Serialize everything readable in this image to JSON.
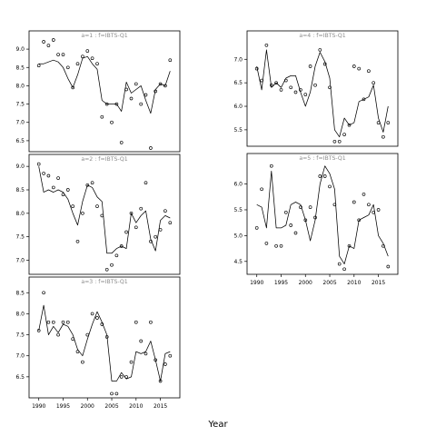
{
  "figure": {
    "xlabel": "Year"
  },
  "chart_data": [
    {
      "type": "line",
      "panel_label": "a=1 : f=IBTS-Q1",
      "x_range": [
        1988,
        2019
      ],
      "ylim": [
        6.2,
        9.3
      ],
      "xticks": [
        1990,
        1995,
        2000,
        2005,
        2010,
        2015
      ],
      "xtick_labels": [
        "1990",
        "1995",
        "2000",
        "2005",
        "2010",
        "2015"
      ],
      "yticks": [
        6.5,
        7.0,
        7.5,
        8.0,
        8.5,
        9.0
      ],
      "ytick_labels": [
        "6.5",
        "7.0",
        "7.5",
        "8.0",
        "8.5",
        "9.0"
      ],
      "series": [
        {
          "kind": "line",
          "x": [
            1990,
            1991,
            1992,
            1993,
            1994,
            1995,
            1996,
            1997,
            1998,
            1999,
            2000,
            2001,
            2002,
            2003,
            2004,
            2005,
            2006,
            2007,
            2008,
            2009,
            2010,
            2011,
            2012,
            2013,
            2014,
            2015,
            2016,
            2017
          ],
          "y": [
            8.6,
            8.6,
            8.65,
            8.7,
            8.65,
            8.5,
            8.2,
            7.95,
            8.3,
            8.75,
            8.8,
            8.6,
            8.45,
            7.6,
            7.5,
            7.5,
            7.5,
            7.3,
            8.1,
            7.8,
            7.9,
            8.0,
            7.6,
            7.25,
            7.9,
            8.05,
            8.0,
            8.4
          ]
        },
        {
          "kind": "points",
          "x": [
            1990,
            1991,
            1992,
            1993,
            1994,
            1995,
            1996,
            1997,
            1998,
            1999,
            2000,
            2001,
            2002,
            2003,
            2004,
            2005,
            2006,
            2007,
            2008,
            2009,
            2010,
            2011,
            2012,
            2013,
            2014,
            2015,
            2016,
            2017
          ],
          "y": [
            8.55,
            9.2,
            9.1,
            9.25,
            8.85,
            8.85,
            8.5,
            7.95,
            8.6,
            8.8,
            8.95,
            8.75,
            8.6,
            7.15,
            7.5,
            7.0,
            7.5,
            6.45,
            7.9,
            7.65,
            8.05,
            7.5,
            7.75,
            6.3,
            7.85,
            8.05,
            8.0,
            8.7
          ]
        }
      ]
    },
    {
      "type": "line",
      "panel_label": "a=2 : f=IBTS-Q1",
      "x_range": [
        1988,
        2019
      ],
      "ylim": [
        6.7,
        9.1
      ],
      "xticks": [
        1990,
        1995,
        2000,
        2005,
        2010,
        2015
      ],
      "xtick_labels": [
        "1990",
        "1995",
        "2000",
        "2005",
        "2010",
        "2015"
      ],
      "yticks": [
        7.0,
        7.5,
        8.0,
        8.5,
        9.0
      ],
      "ytick_labels": [
        "7.0",
        "7.5",
        "8.0",
        "8.5",
        "9.0"
      ],
      "series": [
        {
          "kind": "line",
          "x": [
            1990,
            1991,
            1992,
            1993,
            1994,
            1995,
            1996,
            1997,
            1998,
            1999,
            2000,
            2001,
            2002,
            2003,
            2004,
            2005,
            2006,
            2007,
            2008,
            2009,
            2010,
            2011,
            2012,
            2013,
            2014,
            2015,
            2016,
            2017
          ],
          "y": [
            9.0,
            8.45,
            8.5,
            8.45,
            8.5,
            8.45,
            8.3,
            8.0,
            7.75,
            8.25,
            8.6,
            8.55,
            8.35,
            8.25,
            7.15,
            7.15,
            7.25,
            7.3,
            7.25,
            8.0,
            7.8,
            7.95,
            8.05,
            7.45,
            7.2,
            7.85,
            7.95,
            7.9
          ]
        },
        {
          "kind": "points",
          "x": [
            1990,
            1991,
            1992,
            1993,
            1994,
            1995,
            1996,
            1997,
            1998,
            1999,
            2000,
            2001,
            2002,
            2003,
            2004,
            2005,
            2006,
            2007,
            2008,
            2009,
            2010,
            2011,
            2012,
            2013,
            2014,
            2015,
            2016,
            2017
          ],
          "y": [
            9.05,
            8.85,
            8.8,
            8.55,
            8.75,
            8.4,
            8.5,
            8.15,
            7.4,
            8.0,
            8.6,
            8.65,
            8.15,
            7.95,
            6.8,
            6.9,
            7.1,
            7.3,
            7.6,
            8.0,
            7.7,
            8.1,
            8.65,
            7.4,
            7.5,
            7.65,
            8.05,
            7.8
          ]
        }
      ]
    },
    {
      "type": "line",
      "panel_label": "a=3 : f=IBTS-Q1",
      "x_range": [
        1988,
        2019
      ],
      "ylim": [
        6.0,
        8.7
      ],
      "xticks": [
        1990,
        1995,
        2000,
        2005,
        2010,
        2015
      ],
      "xtick_labels": [
        "1990",
        "1995",
        "2000",
        "2005",
        "2010",
        "2015"
      ],
      "yticks": [
        6.5,
        7.0,
        7.5,
        8.0,
        8.5
      ],
      "ytick_labels": [
        "6.5",
        "7.0",
        "7.5",
        "8.0",
        "8.5"
      ],
      "series": [
        {
          "kind": "line",
          "x": [
            1990,
            1991,
            1992,
            1993,
            1994,
            1995,
            1996,
            1997,
            1998,
            1999,
            2000,
            2001,
            2002,
            2003,
            2004,
            2005,
            2006,
            2007,
            2008,
            2009,
            2010,
            2011,
            2012,
            2013,
            2014,
            2015,
            2016,
            2017
          ],
          "y": [
            7.6,
            8.2,
            7.5,
            7.7,
            7.55,
            7.75,
            7.7,
            7.5,
            7.15,
            7.0,
            7.4,
            7.75,
            8.05,
            7.8,
            7.5,
            6.4,
            6.4,
            6.6,
            6.45,
            6.5,
            7.1,
            7.05,
            7.1,
            7.35,
            6.9,
            6.4,
            7.05,
            7.1
          ]
        },
        {
          "kind": "points",
          "x": [
            1990,
            1991,
            1992,
            1993,
            1994,
            1995,
            1996,
            1997,
            1998,
            1999,
            2000,
            2001,
            2002,
            2003,
            2004,
            2005,
            2006,
            2007,
            2008,
            2009,
            2010,
            2011,
            2012,
            2013,
            2014,
            2015,
            2016,
            2017
          ],
          "y": [
            7.6,
            8.5,
            7.8,
            7.8,
            7.5,
            7.8,
            7.8,
            7.4,
            7.1,
            6.85,
            7.5,
            8.0,
            7.9,
            7.75,
            7.45,
            6.1,
            6.1,
            6.5,
            6.5,
            6.85,
            7.8,
            7.35,
            7.05,
            7.8,
            6.9,
            6.4,
            6.8,
            7.0
          ]
        }
      ]
    },
    {
      "type": "line",
      "panel_label": "a=4 : f=IBTS-Q1",
      "x_range": [
        1988,
        2019
      ],
      "ylim": [
        5.15,
        7.45
      ],
      "xticks": [
        1990,
        1995,
        2000,
        2005,
        2010,
        2015
      ],
      "xtick_labels": [
        "1990",
        "1995",
        "2000",
        "2005",
        "2010",
        "2015"
      ],
      "yticks": [
        5.5,
        6.0,
        6.5,
        7.0
      ],
      "ytick_labels": [
        "5.5",
        "6.0",
        "6.5",
        "7.0"
      ],
      "series": [
        {
          "kind": "line",
          "x": [
            1990,
            1991,
            1992,
            1993,
            1994,
            1995,
            1996,
            1997,
            1998,
            1999,
            2000,
            2001,
            2002,
            2003,
            2004,
            2005,
            2006,
            2007,
            2008,
            2009,
            2010,
            2011,
            2012,
            2013,
            2014,
            2015,
            2016,
            2017
          ],
          "y": [
            6.85,
            6.35,
            7.2,
            6.4,
            6.5,
            6.4,
            6.6,
            6.65,
            6.65,
            6.3,
            6.0,
            6.3,
            6.85,
            7.15,
            6.95,
            6.6,
            5.5,
            5.35,
            5.75,
            5.6,
            5.65,
            6.1,
            6.15,
            6.2,
            6.45,
            5.75,
            5.45,
            6.0
          ]
        },
        {
          "kind": "points",
          "x": [
            1990,
            1991,
            1992,
            1993,
            1994,
            1995,
            1996,
            1997,
            1998,
            1999,
            2000,
            2001,
            2002,
            2003,
            2004,
            2005,
            2006,
            2007,
            2008,
            2009,
            2010,
            2011,
            2012,
            2013,
            2014,
            2015,
            2016,
            2017
          ],
          "y": [
            6.8,
            6.55,
            7.3,
            6.45,
            6.5,
            6.35,
            6.55,
            6.4,
            6.3,
            6.35,
            6.25,
            6.85,
            6.45,
            7.2,
            6.9,
            6.4,
            5.25,
            5.25,
            5.4,
            5.6,
            6.85,
            6.8,
            6.15,
            6.75,
            6.5,
            5.65,
            5.35,
            5.65
          ]
        }
      ]
    },
    {
      "type": "line",
      "panel_label": "a=5 : f=IBTS-Q1",
      "x_range": [
        1988,
        2019
      ],
      "ylim": [
        4.25,
        6.45
      ],
      "xticks": [
        1990,
        1995,
        2000,
        2005,
        2010,
        2015
      ],
      "xtick_labels": [
        "1990",
        "1995",
        "2000",
        "2005",
        "2010",
        "2015"
      ],
      "yticks": [
        4.5,
        5.0,
        5.5,
        6.0
      ],
      "ytick_labels": [
        "4.5",
        "5.0",
        "5.5",
        "6.0"
      ],
      "series": [
        {
          "kind": "line",
          "x": [
            1990,
            1991,
            1992,
            1993,
            1994,
            1995,
            1996,
            1997,
            1998,
            1999,
            2000,
            2001,
            2002,
            2003,
            2004,
            2005,
            2006,
            2007,
            2008,
            2009,
            2010,
            2011,
            2012,
            2013,
            2014,
            2015,
            2016,
            2017
          ],
          "y": [
            5.6,
            5.55,
            5.15,
            6.25,
            5.15,
            5.15,
            5.2,
            5.6,
            5.65,
            5.6,
            5.3,
            4.9,
            5.3,
            6.0,
            6.35,
            6.2,
            5.9,
            4.6,
            4.45,
            4.8,
            4.75,
            5.3,
            5.35,
            5.4,
            5.6,
            5.0,
            4.85,
            4.6
          ]
        },
        {
          "kind": "points",
          "x": [
            1990,
            1991,
            1992,
            1993,
            1994,
            1995,
            1996,
            1997,
            1998,
            1999,
            2000,
            2001,
            2002,
            2003,
            2004,
            2005,
            2006,
            2007,
            2008,
            2009,
            2010,
            2011,
            2012,
            2013,
            2014,
            2015,
            2016,
            2017
          ],
          "y": [
            5.15,
            5.9,
            4.85,
            6.35,
            4.8,
            4.8,
            5.45,
            5.2,
            5.05,
            5.55,
            5.3,
            5.55,
            5.35,
            6.15,
            6.15,
            5.95,
            5.6,
            4.45,
            4.35,
            4.8,
            5.65,
            5.3,
            5.8,
            5.6,
            5.45,
            5.5,
            4.8,
            4.4
          ]
        }
      ]
    }
  ]
}
